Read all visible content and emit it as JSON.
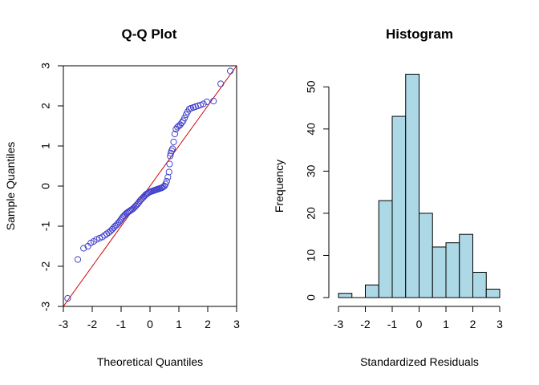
{
  "chart_data": [
    {
      "type": "scatter",
      "title": "Q-Q Plot",
      "xlabel": "Theoretical Quantiles",
      "ylabel": "Sample Quantiles",
      "xlim": [
        -3,
        3
      ],
      "ylim": [
        -3,
        3
      ],
      "xticks": [
        "-3",
        "-2",
        "-1",
        "0",
        "1",
        "2",
        "3"
      ],
      "yticks": [
        "-3",
        "-2",
        "-1",
        "0",
        "1",
        "2",
        "3"
      ],
      "grid": false,
      "point_color": "#4040cc",
      "reference_line": {
        "from": [
          -3,
          -3
        ],
        "to": [
          3,
          3
        ],
        "color": "#cc0000"
      },
      "points": [
        [
          -2.85,
          -2.8
        ],
        [
          -2.5,
          -1.83
        ],
        [
          -2.3,
          -1.55
        ],
        [
          -2.15,
          -1.5
        ],
        [
          -2.05,
          -1.42
        ],
        [
          -1.95,
          -1.38
        ],
        [
          -1.85,
          -1.33
        ],
        [
          -1.75,
          -1.3
        ],
        [
          -1.65,
          -1.27
        ],
        [
          -1.57,
          -1.23
        ],
        [
          -1.5,
          -1.19
        ],
        [
          -1.43,
          -1.16
        ],
        [
          -1.37,
          -1.12
        ],
        [
          -1.31,
          -1.08
        ],
        [
          -1.26,
          -1.04
        ],
        [
          -1.21,
          -1.0
        ],
        [
          -1.16,
          -0.97
        ],
        [
          -1.11,
          -0.93
        ],
        [
          -1.06,
          -0.89
        ],
        [
          -1.02,
          -0.85
        ],
        [
          -0.98,
          -0.81
        ],
        [
          -0.94,
          -0.77
        ],
        [
          -0.9,
          -0.74
        ],
        [
          -0.86,
          -0.71
        ],
        [
          -0.82,
          -0.68
        ],
        [
          -0.78,
          -0.66
        ],
        [
          -0.74,
          -0.64
        ],
        [
          -0.7,
          -0.62
        ],
        [
          -0.66,
          -0.6
        ],
        [
          -0.62,
          -0.58
        ],
        [
          -0.58,
          -0.56
        ],
        [
          -0.54,
          -0.53
        ],
        [
          -0.5,
          -0.5
        ],
        [
          -0.46,
          -0.47
        ],
        [
          -0.42,
          -0.44
        ],
        [
          -0.38,
          -0.4
        ],
        [
          -0.34,
          -0.36
        ],
        [
          -0.3,
          -0.33
        ],
        [
          -0.26,
          -0.3
        ],
        [
          -0.22,
          -0.27
        ],
        [
          -0.18,
          -0.24
        ],
        [
          -0.14,
          -0.21
        ],
        [
          -0.1,
          -0.19
        ],
        [
          -0.06,
          -0.17
        ],
        [
          -0.02,
          -0.15
        ],
        [
          0.02,
          -0.14
        ],
        [
          0.06,
          -0.13
        ],
        [
          0.1,
          -0.12
        ],
        [
          0.14,
          -0.11
        ],
        [
          0.18,
          -0.1
        ],
        [
          0.22,
          -0.09
        ],
        [
          0.26,
          -0.08
        ],
        [
          0.3,
          -0.07
        ],
        [
          0.34,
          -0.06
        ],
        [
          0.38,
          -0.05
        ],
        [
          0.42,
          -0.04
        ],
        [
          0.46,
          -0.02
        ],
        [
          0.5,
          0.0
        ],
        [
          0.54,
          0.05
        ],
        [
          0.58,
          0.12
        ],
        [
          0.62,
          0.22
        ],
        [
          0.66,
          0.35
        ],
        [
          0.68,
          0.55
        ],
        [
          0.7,
          0.75
        ],
        [
          0.72,
          0.82
        ],
        [
          0.75,
          0.88
        ],
        [
          0.78,
          0.93
        ],
        [
          0.82,
          1.1
        ],
        [
          0.86,
          1.3
        ],
        [
          0.9,
          1.42
        ],
        [
          0.95,
          1.47
        ],
        [
          1.0,
          1.5
        ],
        [
          1.05,
          1.53
        ],
        [
          1.1,
          1.58
        ],
        [
          1.15,
          1.63
        ],
        [
          1.2,
          1.7
        ],
        [
          1.25,
          1.78
        ],
        [
          1.3,
          1.85
        ],
        [
          1.36,
          1.92
        ],
        [
          1.42,
          1.94
        ],
        [
          1.5,
          1.96
        ],
        [
          1.58,
          1.98
        ],
        [
          1.66,
          2.0
        ],
        [
          1.75,
          2.02
        ],
        [
          1.85,
          2.05
        ],
        [
          1.97,
          2.1
        ],
        [
          2.2,
          2.12
        ],
        [
          2.45,
          2.55
        ],
        [
          2.78,
          2.87
        ]
      ]
    },
    {
      "type": "bar",
      "title": "Histogram",
      "xlabel": "Standardized Residuals",
      "ylabel": "Frequency",
      "xlim": [
        -3,
        3
      ],
      "ylim": [
        0,
        55
      ],
      "xticks": [
        "-3",
        "-2",
        "-1",
        "0",
        "1",
        "2",
        "3"
      ],
      "yticks": [
        "0",
        "10",
        "20",
        "30",
        "40",
        "50"
      ],
      "grid": false,
      "bar_color": "#add8e6",
      "bins": [
        {
          "from": -3.0,
          "to": -2.5,
          "count": 1
        },
        {
          "from": -2.5,
          "to": -2.0,
          "count": 0
        },
        {
          "from": -2.0,
          "to": -1.5,
          "count": 3
        },
        {
          "from": -1.5,
          "to": -1.0,
          "count": 23
        },
        {
          "from": -1.0,
          "to": -0.5,
          "count": 43
        },
        {
          "from": -0.5,
          "to": 0.0,
          "count": 53
        },
        {
          "from": 0.0,
          "to": 0.5,
          "count": 20
        },
        {
          "from": 0.5,
          "to": 1.0,
          "count": 12
        },
        {
          "from": 1.0,
          "to": 1.5,
          "count": 13
        },
        {
          "from": 1.5,
          "to": 2.0,
          "count": 15
        },
        {
          "from": 2.0,
          "to": 2.5,
          "count": 6
        },
        {
          "from": 2.5,
          "to": 3.0,
          "count": 2
        }
      ]
    }
  ]
}
